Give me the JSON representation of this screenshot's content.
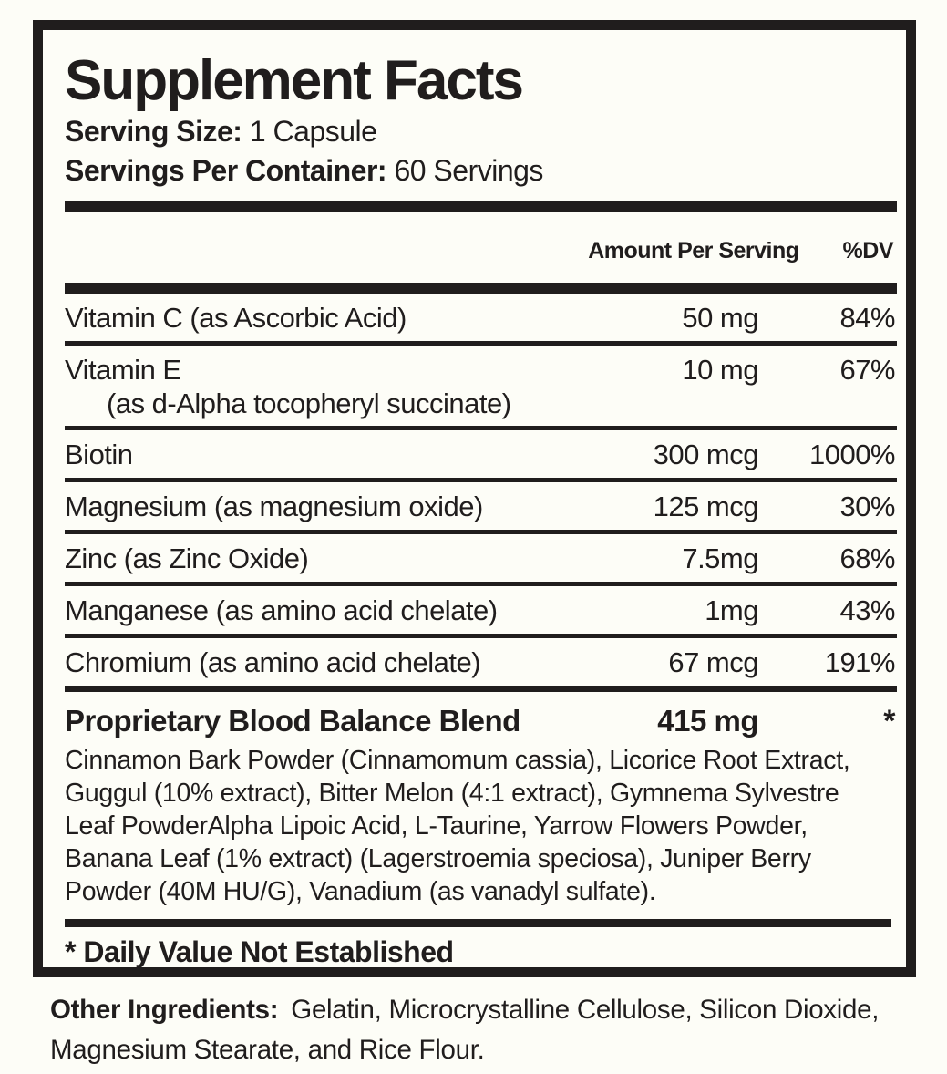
{
  "header": {
    "title": "Supplement Facts",
    "serving_size_label": "Serving Size:",
    "serving_size_value": "1 Capsule",
    "servings_per_container_label": "Servings Per Container:",
    "servings_per_container_value": "60 Servings"
  },
  "columns": {
    "amount": "Amount Per Serving",
    "dv": "%DV"
  },
  "nutrients": [
    {
      "name": "Vitamin C (as Ascorbic Acid)",
      "amount": "50 mg",
      "dv": "84%"
    },
    {
      "name": "Vitamin E",
      "name2": "(as d-Alpha tocopheryl succinate)",
      "amount": "10 mg",
      "dv": "67%"
    },
    {
      "name": "Biotin",
      "amount": "300 mcg",
      "dv": "1000%"
    },
    {
      "name": "Magnesium (as magnesium oxide)",
      "amount": "125 mcg",
      "dv": "30%"
    },
    {
      "name": "Zinc (as Zinc Oxide)",
      "amount": "7.5mg",
      "dv": "68%"
    },
    {
      "name": "Manganese (as amino acid chelate)",
      "amount": "1mg",
      "dv": "43%"
    },
    {
      "name": "Chromium (as amino acid chelate)",
      "amount": "67 mcg",
      "dv": "191%"
    }
  ],
  "blend": {
    "name": "Proprietary Blood Balance Blend",
    "amount": "415 mg",
    "dv": "*",
    "description": "Cinnamon Bark Powder (Cinnamomum cassia), Licorice Root Extract, Guggul (10% extract), Bitter Melon (4:1 extract), Gymnema Sylvestre Leaf PowderAlpha Lipoic Acid, L-Taurine, Yarrow Flowers Powder, Banana Leaf (1% extract) (Lagerstroemia speciosa), Juniper Berry Powder (40M HU/G), Vanadium (as vanadyl sulfate)."
  },
  "footnote": "* Daily Value Not Established",
  "other_ingredients": {
    "label": "Other Ingredients:",
    "value": "Gelatin, Microcrystalline Cellulose, Silicon Dioxide, Magnesium Stearate, and Rice Flour."
  },
  "colors": {
    "ink": "#201d1d",
    "bg": "#fdfdf7"
  }
}
